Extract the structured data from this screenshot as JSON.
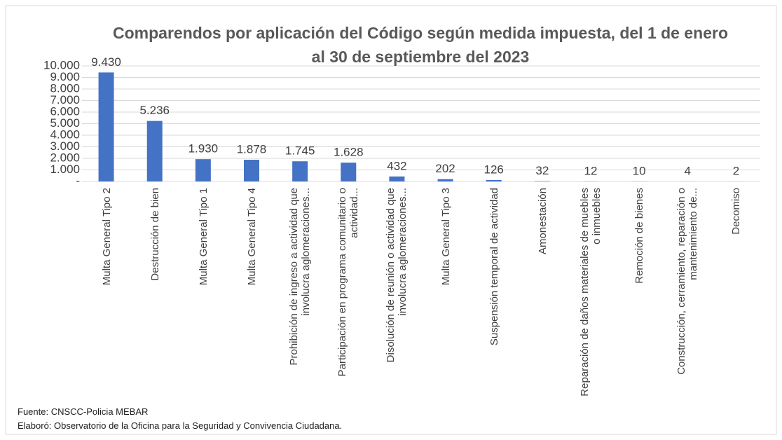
{
  "chart_data": {
    "type": "bar",
    "title": "Comparendos por aplicación del Código según medida impuesta, del 1 de enero al 30 de septiembre del 2023",
    "categories": [
      "Multa General Tipo 2",
      "Destrucción de bien",
      "Multa General Tipo 1",
      "Multa General Tipo 4",
      "Prohibición de ingreso a actividad que involucra aglomeraciones...",
      "Participación en programa comunitario o actividad...",
      "Disolución de reunión o actividad que involucra aglomeraciones...",
      "Multa General Tipo 3",
      "Suspensión temporal de actividad",
      "Amonestación",
      "Reparación de daños materiales de muebles o inmuebles",
      "Remoción de bienes",
      "Construcción, cerramiento, reparación o mantenimiento de...",
      "Decomiso"
    ],
    "values": [
      9430,
      5236,
      1930,
      1878,
      1745,
      1628,
      432,
      202,
      126,
      32,
      12,
      10,
      4,
      2
    ],
    "value_labels": [
      "9.430",
      "5.236",
      "1.930",
      "1.878",
      "1.745",
      "1.628",
      "432",
      "202",
      "126",
      "32",
      "12",
      "10",
      "4",
      "2"
    ],
    "color": "#4472c4",
    "ylim": [
      0,
      10000
    ],
    "yticks": [
      {
        "value": 0,
        "label": "-"
      },
      {
        "value": 1000,
        "label": "1.000"
      },
      {
        "value": 2000,
        "label": "2.000"
      },
      {
        "value": 3000,
        "label": "3.000"
      },
      {
        "value": 4000,
        "label": "4.000"
      },
      {
        "value": 5000,
        "label": "5.000"
      },
      {
        "value": 6000,
        "label": "6.000"
      },
      {
        "value": 7000,
        "label": "7.000"
      },
      {
        "value": 8000,
        "label": "8.000"
      },
      {
        "value": 9000,
        "label": "9.000"
      },
      {
        "value": 10000,
        "label": "10.000"
      }
    ],
    "grid": true,
    "notes": [
      "Fuente: CNSCC-Policia MEBAR",
      "Elaboró: Observatorio de la Oficina para la Seguridad y Convivencia Ciudadana."
    ]
  }
}
